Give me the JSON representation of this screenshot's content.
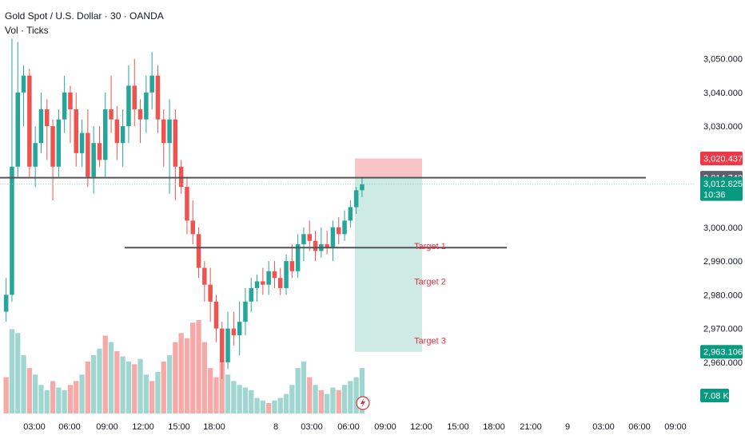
{
  "header": {
    "title": "Gold Spot / U.S. Dollar · 30 · OANDA",
    "indicator": "Vol · Ticks"
  },
  "colors": {
    "up": "#26a69a",
    "down": "#ef5350",
    "up_volume": "#9fd7d0",
    "down_volume": "#f7a9a7",
    "risk_zone": "#f8c4c6",
    "reward_zone": "#cdeae4",
    "level_line": "#555555",
    "badge_red": "#f23645",
    "badge_green": "#089981"
  },
  "chart_data": {
    "type": "candlestick",
    "symbol": "XAUUSD",
    "interval": "30",
    "ylim": [
      2955,
      3057
    ],
    "y_ticks": [
      "3,050.000",
      "3,040.000",
      "3,030.000",
      "3,020.000",
      "3,010.000",
      "3,000.000",
      "2,990.000",
      "2,980.000",
      "2,970.000",
      "2,960.000"
    ],
    "x_ticks": [
      "03:00",
      "06:00",
      "09:00",
      "12:00",
      "15:00",
      "18:00",
      "8",
      "03:00",
      "06:00",
      "09:00",
      "12:00",
      "15:00",
      "18:00",
      "21:00",
      "9",
      "03:00",
      "06:00",
      "09:00"
    ],
    "candles": [
      {
        "o": 2975,
        "h": 2985,
        "l": 2972,
        "c": 2980
      },
      {
        "o": 2980,
        "h": 3056,
        "l": 2978,
        "c": 3018
      },
      {
        "o": 3018,
        "h": 3055,
        "l": 3015,
        "c": 3040
      },
      {
        "o": 3040,
        "h": 3048,
        "l": 3030,
        "c": 3045
      },
      {
        "o": 3045,
        "h": 3047,
        "l": 3015,
        "c": 3018
      },
      {
        "o": 3018,
        "h": 3030,
        "l": 3012,
        "c": 3025
      },
      {
        "o": 3025,
        "h": 3040,
        "l": 3022,
        "c": 3035
      },
      {
        "o": 3035,
        "h": 3038,
        "l": 3020,
        "c": 3030
      },
      {
        "o": 3030,
        "h": 3032,
        "l": 3008,
        "c": 3018
      },
      {
        "o": 3018,
        "h": 3035,
        "l": 3015,
        "c": 3032
      },
      {
        "o": 3032,
        "h": 3045,
        "l": 3028,
        "c": 3040
      },
      {
        "o": 3040,
        "h": 3042,
        "l": 3025,
        "c": 3035
      },
      {
        "o": 3035,
        "h": 3040,
        "l": 3018,
        "c": 3022
      },
      {
        "o": 3022,
        "h": 3032,
        "l": 3018,
        "c": 3028
      },
      {
        "o": 3028,
        "h": 3035,
        "l": 3012,
        "c": 3015
      },
      {
        "o": 3015,
        "h": 3030,
        "l": 3010,
        "c": 3025
      },
      {
        "o": 3025,
        "h": 3030,
        "l": 3018,
        "c": 3020
      },
      {
        "o": 3020,
        "h": 3040,
        "l": 3015,
        "c": 3035
      },
      {
        "o": 3035,
        "h": 3045,
        "l": 3028,
        "c": 3032
      },
      {
        "o": 3032,
        "h": 3036,
        "l": 3020,
        "c": 3025
      },
      {
        "o": 3025,
        "h": 3035,
        "l": 3018,
        "c": 3030
      },
      {
        "o": 3030,
        "h": 3048,
        "l": 3025,
        "c": 3042
      },
      {
        "o": 3042,
        "h": 3050,
        "l": 3030,
        "c": 3035
      },
      {
        "o": 3035,
        "h": 3038,
        "l": 3025,
        "c": 3032
      },
      {
        "o": 3032,
        "h": 3045,
        "l": 3028,
        "c": 3040
      },
      {
        "o": 3040,
        "h": 3052,
        "l": 3035,
        "c": 3045
      },
      {
        "o": 3045,
        "h": 3048,
        "l": 3028,
        "c": 3032
      },
      {
        "o": 3032,
        "h": 3035,
        "l": 3018,
        "c": 3025
      },
      {
        "o": 3025,
        "h": 3038,
        "l": 3010,
        "c": 3032
      },
      {
        "o": 3032,
        "h": 3035,
        "l": 3008,
        "c": 3018
      },
      {
        "o": 3018,
        "h": 3020,
        "l": 3010,
        "c": 3012
      },
      {
        "o": 3012,
        "h": 3015,
        "l": 2998,
        "c": 3002
      },
      {
        "o": 3002,
        "h": 3008,
        "l": 2995,
        "c": 2998
      },
      {
        "o": 2998,
        "h": 3000,
        "l": 2985,
        "c": 2988
      },
      {
        "o": 2988,
        "h": 2990,
        "l": 2978,
        "c": 2983
      },
      {
        "o": 2983,
        "h": 2988,
        "l": 2972,
        "c": 2978
      },
      {
        "o": 2978,
        "h": 2980,
        "l": 2966,
        "c": 2970
      },
      {
        "o": 2970,
        "h": 2972,
        "l": 2955,
        "c": 2960
      },
      {
        "o": 2960,
        "h": 2975,
        "l": 2958,
        "c": 2970
      },
      {
        "o": 2970,
        "h": 2975,
        "l": 2965,
        "c": 2968
      },
      {
        "o": 2968,
        "h": 2978,
        "l": 2962,
        "c": 2972
      },
      {
        "o": 2972,
        "h": 2982,
        "l": 2968,
        "c": 2978
      },
      {
        "o": 2978,
        "h": 2985,
        "l": 2975,
        "c": 2982
      },
      {
        "o": 2982,
        "h": 2986,
        "l": 2978,
        "c": 2984
      },
      {
        "o": 2984,
        "h": 2988,
        "l": 2980,
        "c": 2983
      },
      {
        "o": 2983,
        "h": 2990,
        "l": 2980,
        "c": 2987
      },
      {
        "o": 2987,
        "h": 2990,
        "l": 2982,
        "c": 2985
      },
      {
        "o": 2985,
        "h": 2988,
        "l": 2980,
        "c": 2982
      },
      {
        "o": 2982,
        "h": 2992,
        "l": 2980,
        "c": 2990
      },
      {
        "o": 2990,
        "h": 2995,
        "l": 2985,
        "c": 2987
      },
      {
        "o": 2987,
        "h": 2998,
        "l": 2985,
        "c": 2995
      },
      {
        "o": 2995,
        "h": 3000,
        "l": 2990,
        "c": 2998
      },
      {
        "o": 2998,
        "h": 3002,
        "l": 2993,
        "c": 2996
      },
      {
        "o": 2996,
        "h": 2999,
        "l": 2990,
        "c": 2993
      },
      {
        "o": 2993,
        "h": 3000,
        "l": 2991,
        "c": 2995
      },
      {
        "o": 2995,
        "h": 2999,
        "l": 2992,
        "c": 2994
      },
      {
        "o": 2994,
        "h": 3002,
        "l": 2990,
        "c": 3000
      },
      {
        "o": 3000,
        "h": 3003,
        "l": 2995,
        "c": 2998
      },
      {
        "o": 2998,
        "h": 3005,
        "l": 2996,
        "c": 3002
      },
      {
        "o": 3002,
        "h": 3008,
        "l": 3000,
        "c": 3006
      },
      {
        "o": 3006,
        "h": 3012,
        "l": 3004,
        "c": 3011
      },
      {
        "o": 3011,
        "h": 3015,
        "l": 3009,
        "c": 3012.8
      }
    ],
    "volumes": [
      {
        "v": 28,
        "up": false
      },
      {
        "v": 65,
        "up": true
      },
      {
        "v": 62,
        "up": true
      },
      {
        "v": 45,
        "up": true
      },
      {
        "v": 35,
        "up": false
      },
      {
        "v": 30,
        "up": true
      },
      {
        "v": 22,
        "up": true
      },
      {
        "v": 18,
        "up": true
      },
      {
        "v": 25,
        "up": false
      },
      {
        "v": 20,
        "up": true
      },
      {
        "v": 18,
        "up": true
      },
      {
        "v": 22,
        "up": false
      },
      {
        "v": 25,
        "up": false
      },
      {
        "v": 30,
        "up": true
      },
      {
        "v": 40,
        "up": false
      },
      {
        "v": 45,
        "up": true
      },
      {
        "v": 50,
        "up": true
      },
      {
        "v": 60,
        "up": false
      },
      {
        "v": 55,
        "up": true
      },
      {
        "v": 48,
        "up": false
      },
      {
        "v": 44,
        "up": true
      },
      {
        "v": 40,
        "up": true
      },
      {
        "v": 38,
        "up": false
      },
      {
        "v": 42,
        "up": true
      },
      {
        "v": 30,
        "up": true
      },
      {
        "v": 25,
        "up": false
      },
      {
        "v": 32,
        "up": true
      },
      {
        "v": 40,
        "up": false
      },
      {
        "v": 45,
        "up": true
      },
      {
        "v": 55,
        "up": false
      },
      {
        "v": 62,
        "up": false
      },
      {
        "v": 58,
        "up": false
      },
      {
        "v": 70,
        "up": false
      },
      {
        "v": 72,
        "up": false
      },
      {
        "v": 55,
        "up": false
      },
      {
        "v": 35,
        "up": false
      },
      {
        "v": 28,
        "up": false
      },
      {
        "v": 40,
        "up": false
      },
      {
        "v": 30,
        "up": true
      },
      {
        "v": 25,
        "up": true
      },
      {
        "v": 22,
        "up": true
      },
      {
        "v": 20,
        "up": true
      },
      {
        "v": 18,
        "up": true
      },
      {
        "v": 12,
        "up": true
      },
      {
        "v": 10,
        "up": true
      },
      {
        "v": 8,
        "up": false
      },
      {
        "v": 10,
        "up": true
      },
      {
        "v": 12,
        "up": true
      },
      {
        "v": 15,
        "up": true
      },
      {
        "v": 22,
        "up": true
      },
      {
        "v": 35,
        "up": true
      },
      {
        "v": 40,
        "up": true
      },
      {
        "v": 28,
        "up": false
      },
      {
        "v": 22,
        "up": true
      },
      {
        "v": 18,
        "up": false
      },
      {
        "v": 15,
        "up": true
      },
      {
        "v": 20,
        "up": true
      },
      {
        "v": 18,
        "up": false
      },
      {
        "v": 22,
        "up": true
      },
      {
        "v": 25,
        "up": true
      },
      {
        "v": 28,
        "up": true
      },
      {
        "v": 35,
        "up": true
      }
    ],
    "horizontal_lines": [
      3014.74,
      2994.0
    ],
    "position": {
      "type": "short",
      "entry": 3014.74,
      "stop": 3020.437,
      "target": 2963.106
    },
    "annotations": [
      {
        "text": "Target 1",
        "price": 2994.5
      },
      {
        "text": "Target 2",
        "price": 2984.0
      },
      {
        "text": "Target 3",
        "price": 2966.5
      }
    ],
    "price_badges": [
      {
        "text": "3,020.437",
        "price": 3020.437,
        "color": "#f23645"
      },
      {
        "text": "3,014.740",
        "price": 3014.74,
        "color": "#5d606b"
      },
      {
        "text": "3,012.825",
        "price": 3012.825,
        "color": "#089981",
        "sub": "10:36"
      },
      {
        "text": "2,963.106",
        "price": 2963.106,
        "color": "#089981"
      }
    ],
    "volume_badge": "7.08 K"
  }
}
